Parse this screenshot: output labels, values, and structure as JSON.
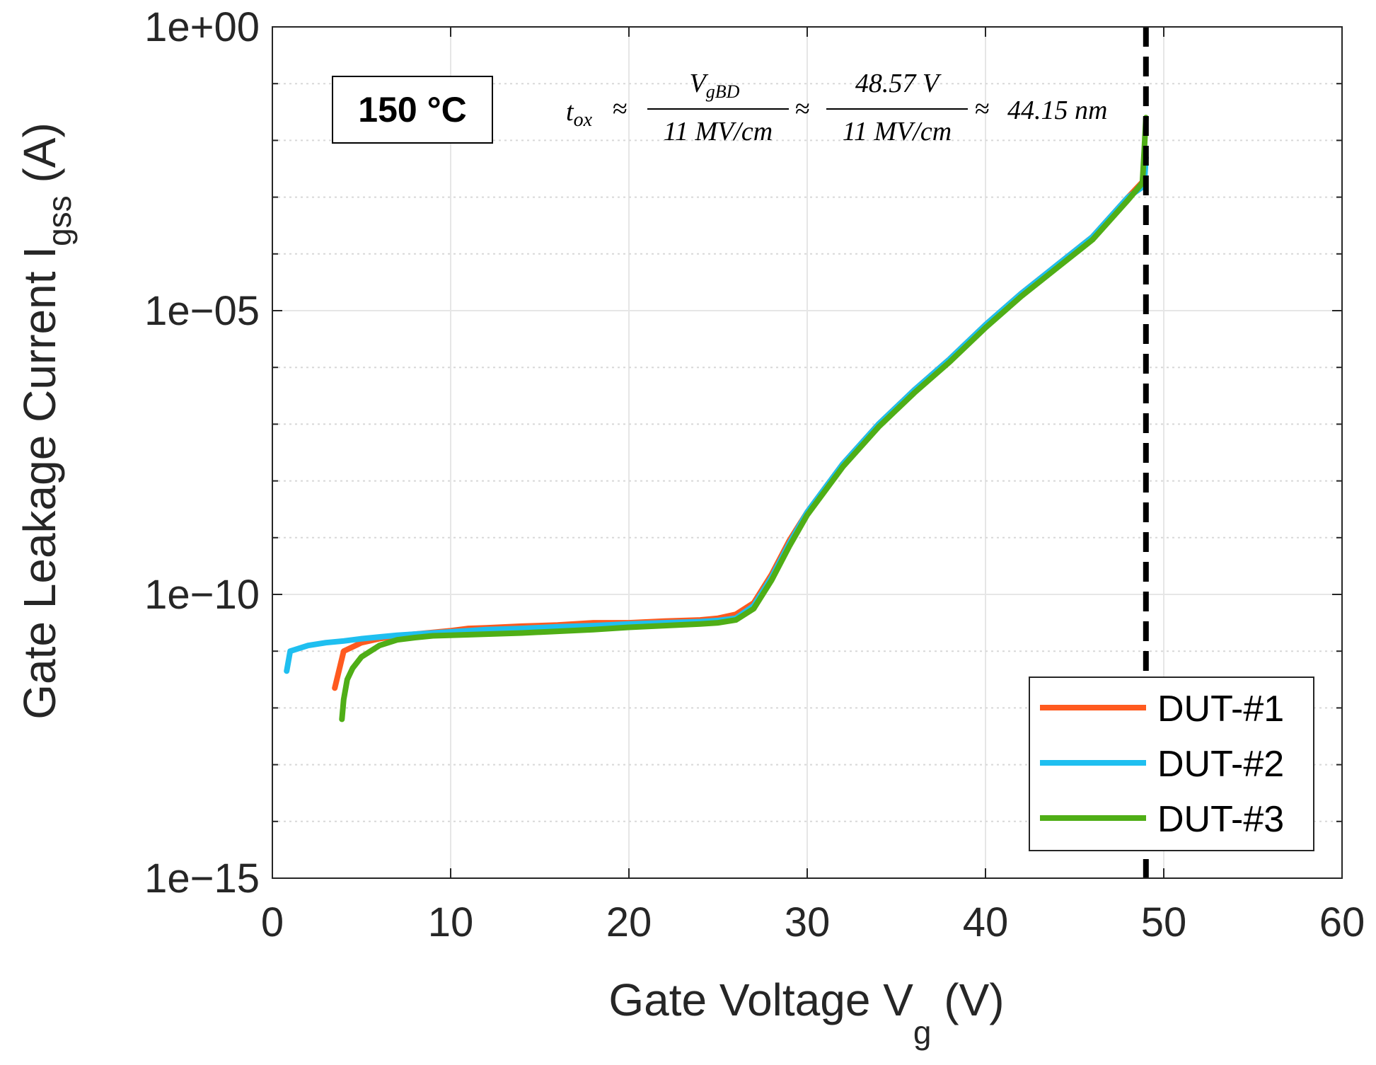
{
  "chart_data": {
    "type": "line",
    "yscale": "log",
    "xlabel_main": "Gate Voltage V",
    "xlabel_sub": "g",
    "xlabel_unit": " (V)",
    "ylabel_main": "Gate Leakage Current I",
    "ylabel_sub": "gss",
    "ylabel_unit": " (A)",
    "xlim": [
      0,
      60
    ],
    "ylim_log10": [
      -15,
      0
    ],
    "xticks": [
      0,
      10,
      20,
      30,
      40,
      50,
      60
    ],
    "xtick_labels": [
      "0",
      "10",
      "20",
      "30",
      "40",
      "50",
      "60"
    ],
    "yticks_log10": [
      0,
      -5,
      -10,
      -15
    ],
    "ytick_labels": [
      "1e+00",
      "1e−05",
      "1e−10",
      "1e−15"
    ],
    "annotation_temp": "150 °C",
    "breakdown_voltage": 49,
    "formula": {
      "lhs": "t",
      "lhs_sub": "ox",
      "approx": "≈",
      "f1_num": "V",
      "f1_num_sub": "gBD",
      "f1_den": "11 MV/cm",
      "f2_num": "48.57 V",
      "f2_den": "11 MV/cm",
      "result": "44.15 nm"
    },
    "series": [
      {
        "name": "DUT-#1",
        "color": "#ff5a1f",
        "x": [
          3.5,
          4,
          5,
          6,
          7,
          8,
          9,
          10,
          11,
          12,
          14,
          16,
          18,
          20,
          22,
          24,
          25,
          26,
          27,
          28,
          29,
          30,
          32,
          34,
          36,
          38,
          40,
          42,
          44,
          46,
          48,
          48.9,
          48.95,
          49
        ],
        "y_log10": [
          -11.65,
          -11.0,
          -10.85,
          -10.78,
          -10.73,
          -10.7,
          -10.67,
          -10.64,
          -10.6,
          -10.59,
          -10.56,
          -10.54,
          -10.5,
          -10.5,
          -10.47,
          -10.45,
          -10.42,
          -10.35,
          -10.15,
          -9.65,
          -9.05,
          -8.55,
          -7.7,
          -7.0,
          -6.4,
          -5.85,
          -5.25,
          -4.7,
          -4.2,
          -3.7,
          -3.0,
          -2.7,
          -2.4,
          -2.3
        ]
      },
      {
        "name": "DUT-#2",
        "color": "#1fbff0",
        "x": [
          0.8,
          1,
          1.5,
          2,
          3,
          4,
          5,
          6,
          7,
          8,
          9,
          10,
          12,
          14,
          16,
          18,
          20,
          22,
          24,
          25,
          26,
          27,
          28,
          29,
          30,
          32,
          34,
          36,
          38,
          40,
          42,
          44,
          46,
          48,
          48.9,
          49
        ],
        "y_log10": [
          -11.35,
          -11.0,
          -10.95,
          -10.9,
          -10.85,
          -10.82,
          -10.78,
          -10.75,
          -10.72,
          -10.7,
          -10.68,
          -10.66,
          -10.62,
          -10.6,
          -10.57,
          -10.55,
          -10.52,
          -10.5,
          -10.48,
          -10.46,
          -10.42,
          -10.2,
          -9.7,
          -9.1,
          -8.55,
          -7.7,
          -7.0,
          -6.4,
          -5.85,
          -5.25,
          -4.7,
          -4.2,
          -3.7,
          -3.0,
          -2.8,
          -2.3
        ]
      },
      {
        "name": "DUT-#3",
        "color": "#4fae16",
        "x": [
          3.9,
          4,
          4.2,
          4.5,
          5,
          6,
          7,
          8,
          9,
          10,
          12,
          14,
          16,
          18,
          20,
          22,
          24,
          25,
          26,
          27,
          28,
          29,
          30,
          32,
          34,
          36,
          38,
          40,
          42,
          44,
          46,
          48,
          48.8,
          48.9,
          49
        ],
        "y_log10": [
          -12.2,
          -11.85,
          -11.5,
          -11.3,
          -11.1,
          -10.9,
          -10.8,
          -10.76,
          -10.73,
          -10.72,
          -10.7,
          -10.68,
          -10.65,
          -10.62,
          -10.58,
          -10.55,
          -10.52,
          -10.5,
          -10.45,
          -10.25,
          -9.75,
          -9.15,
          -8.6,
          -7.75,
          -7.05,
          -6.45,
          -5.9,
          -5.3,
          -4.75,
          -4.25,
          -3.75,
          -3.05,
          -2.75,
          -2.2,
          -1.6
        ]
      }
    ],
    "legend_location": "bottom-right"
  }
}
